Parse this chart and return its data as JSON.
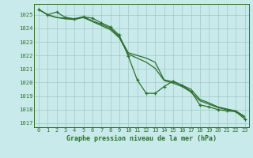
{
  "title": "Graphe pression niveau de la mer (hPa)",
  "bg_color": "#c8eaea",
  "grid_color": "#a0c8c8",
  "line_color": "#2d6e2d",
  "xlim": [
    -0.5,
    23.5
  ],
  "ylim": [
    1016.7,
    1025.8
  ],
  "yticks": [
    1017,
    1018,
    1019,
    1020,
    1021,
    1022,
    1023,
    1024,
    1025
  ],
  "xticks": [
    0,
    1,
    2,
    3,
    4,
    5,
    6,
    7,
    8,
    9,
    10,
    11,
    12,
    13,
    14,
    15,
    16,
    17,
    18,
    19,
    20,
    21,
    22,
    23
  ],
  "series": [
    [
      1025.4,
      1025.0,
      1025.2,
      1024.8,
      1024.7,
      1024.85,
      1024.75,
      1024.4,
      1024.1,
      1023.5,
      1021.95,
      1020.2,
      1019.2,
      1019.2,
      1019.7,
      1020.1,
      1019.8,
      1019.35,
      1018.35,
      1018.2,
      1018.0,
      1017.9,
      1017.85,
      1017.3
    ],
    [
      1025.4,
      1025.0,
      1024.8,
      1024.75,
      1024.7,
      1024.85,
      1024.55,
      1024.3,
      1024.0,
      1023.4,
      1022.2,
      1022.0,
      1021.8,
      1021.5,
      1020.2,
      1020.05,
      1019.8,
      1019.5,
      1018.75,
      1018.5,
      1018.2,
      1018.05,
      1017.9,
      1017.5
    ],
    [
      1025.4,
      1025.0,
      1024.8,
      1024.7,
      1024.65,
      1024.8,
      1024.5,
      1024.2,
      1023.9,
      1023.3,
      1022.1,
      1021.8,
      1021.5,
      1021.05,
      1020.15,
      1019.95,
      1019.7,
      1019.3,
      1018.65,
      1018.4,
      1018.15,
      1017.98,
      1017.88,
      1017.42
    ]
  ]
}
